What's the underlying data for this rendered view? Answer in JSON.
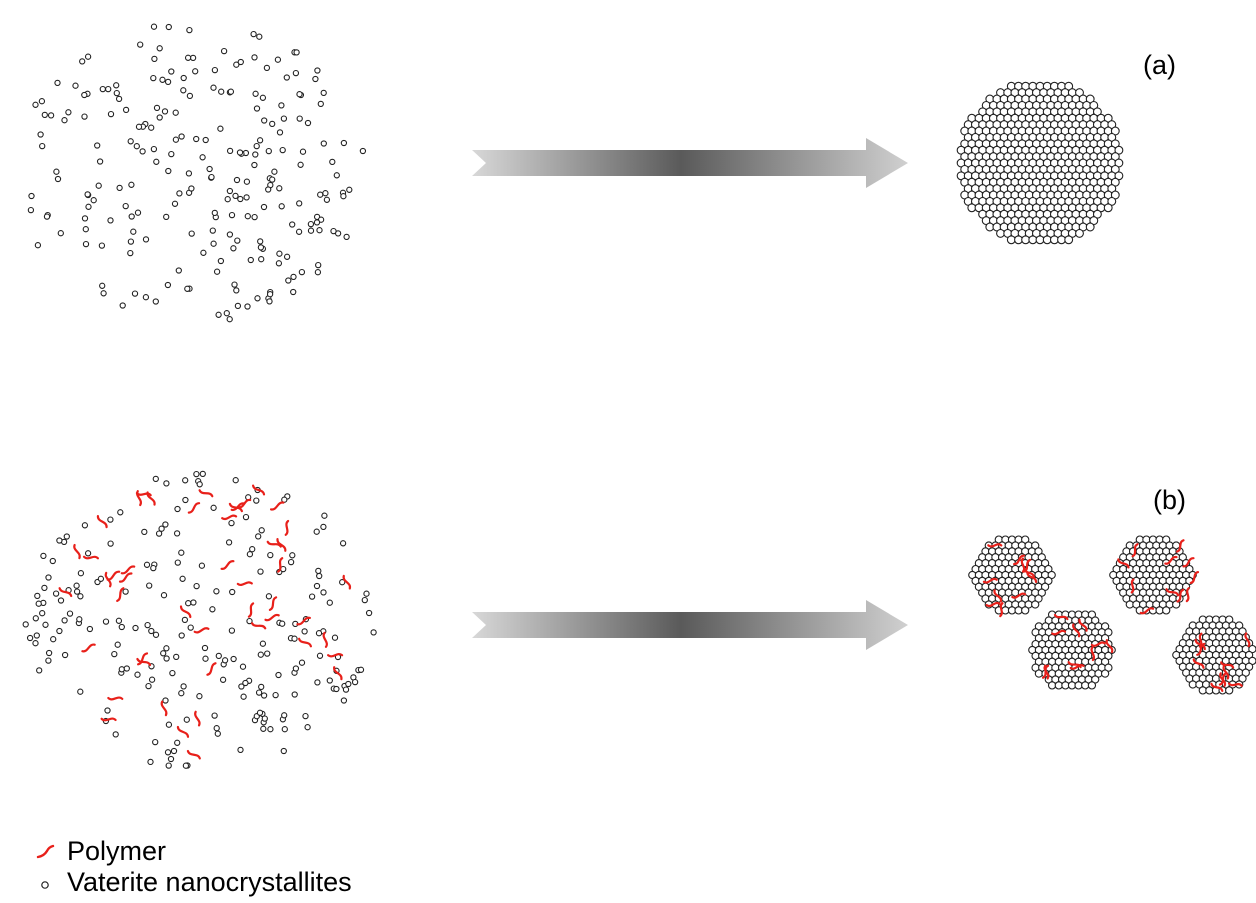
{
  "panels": [
    {
      "label": "(a)",
      "description_key": "without_polymer"
    },
    {
      "label": "(b)",
      "description_key": "with_polymer"
    }
  ],
  "legend": {
    "polymer_label": "Polymer",
    "nanocrystallite_label": "Vaterite nanocrystallites"
  },
  "colors": {
    "polymer": "#e8201a",
    "crystallite_stroke": "#222222",
    "arrow_light": "#d4d4d4",
    "arrow_dark": "#5a5a5a"
  }
}
